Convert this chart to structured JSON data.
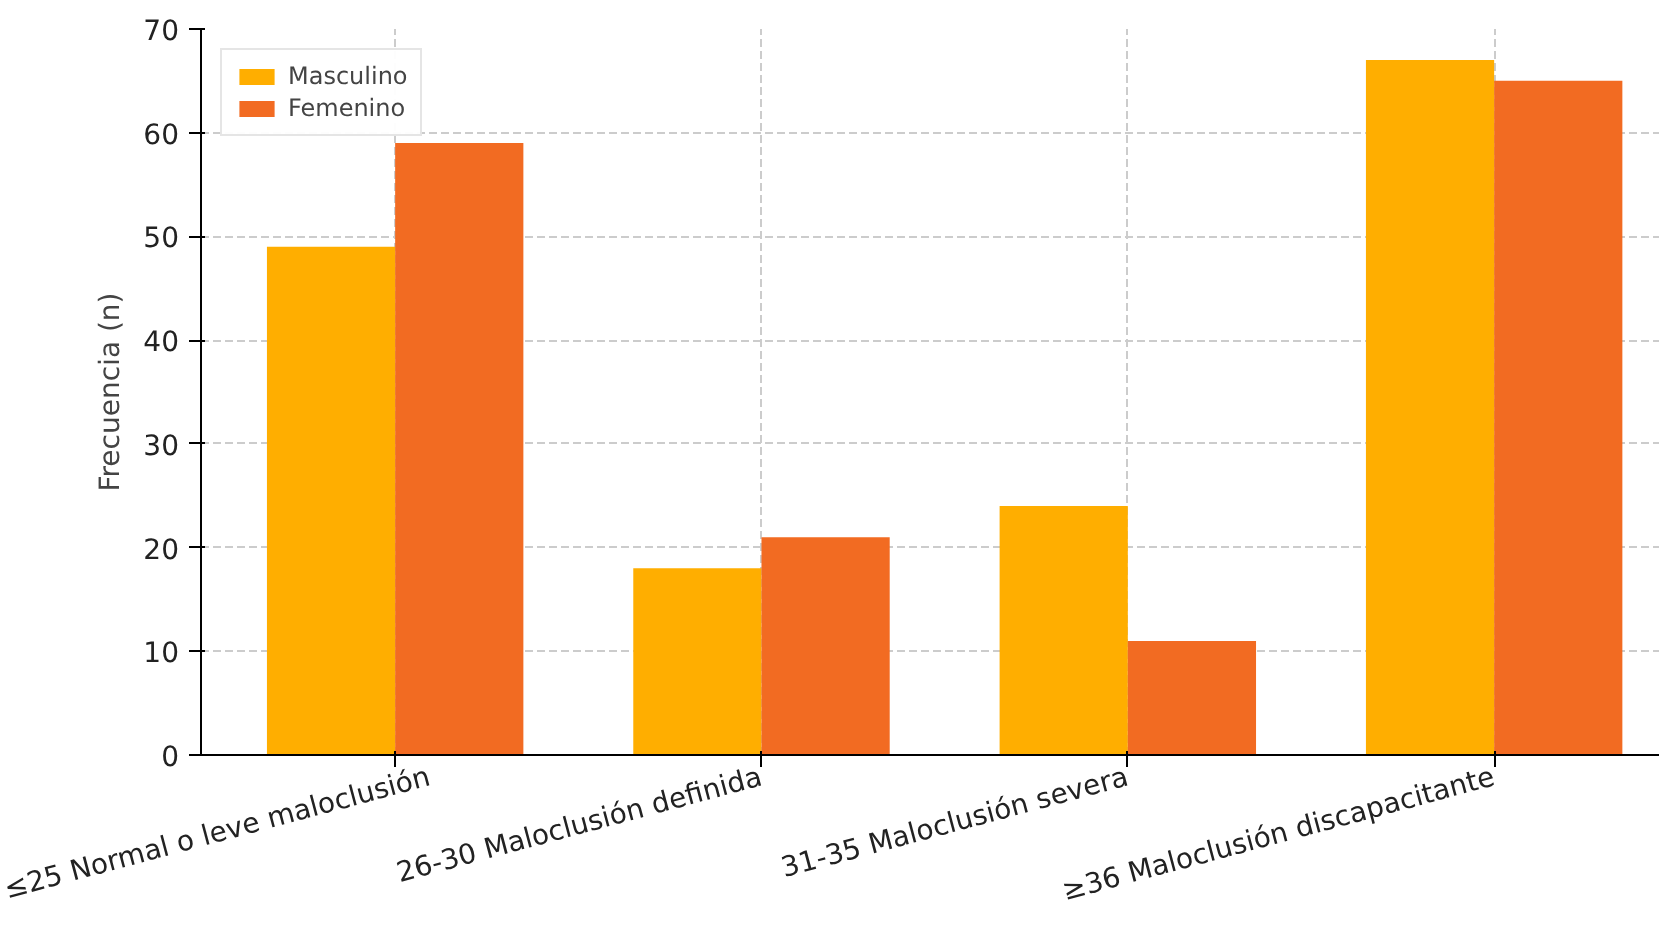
{
  "chart_data": {
    "type": "bar",
    "ylabel": "Frecuencia (n)",
    "categories": [
      "≤25 Normal o leve maloclusión",
      "26-30 Maloclusión definida",
      "31-35 Maloclusión severa",
      "≥36 Maloclusión discapacitante"
    ],
    "series": [
      {
        "name": "Masculino",
        "color": "#ffae00",
        "values": [
          49,
          18,
          24,
          67
        ]
      },
      {
        "name": "Femenino",
        "color": "#f26b22",
        "values": [
          59,
          21,
          11,
          65
        ]
      }
    ],
    "ylim": [
      0,
      70
    ],
    "yticks": [
      0,
      10,
      20,
      30,
      40,
      50,
      60,
      70
    ],
    "grid": true,
    "legend": "top left"
  }
}
